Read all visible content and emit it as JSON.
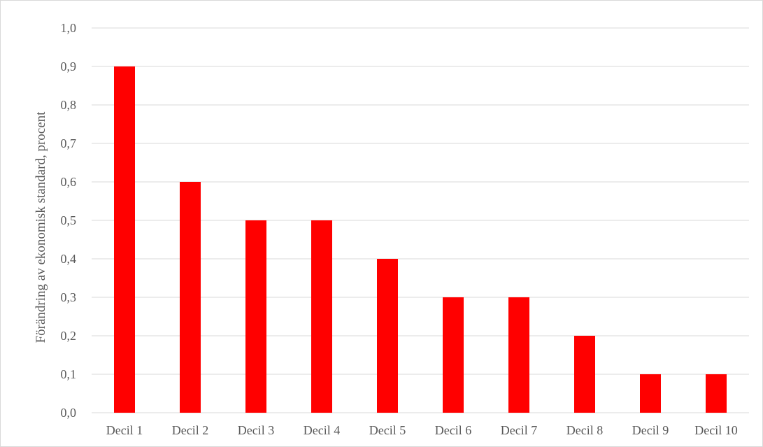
{
  "chart_data": {
    "type": "bar",
    "title": "",
    "xlabel": "",
    "ylabel": "Förändring av ekonomisk standard, procent",
    "categories": [
      "Decil 1",
      "Decil 2",
      "Decil 3",
      "Decil 4",
      "Decil 5",
      "Decil 6",
      "Decil 7",
      "Decil 8",
      "Decil 9",
      "Decil 10"
    ],
    "values": [
      0.9,
      0.6,
      0.5,
      0.5,
      0.4,
      0.3,
      0.3,
      0.2,
      0.1,
      0.1
    ],
    "ylim": [
      0,
      1.0
    ],
    "yticks": [
      "0,0",
      "0,1",
      "0,2",
      "0,3",
      "0,4",
      "0,5",
      "0,6",
      "0,7",
      "0,8",
      "0,9",
      "1,0"
    ],
    "bar_color": "#ff0000",
    "gridline_color": "#d9d9d9",
    "grid": true,
    "legend": "none"
  }
}
